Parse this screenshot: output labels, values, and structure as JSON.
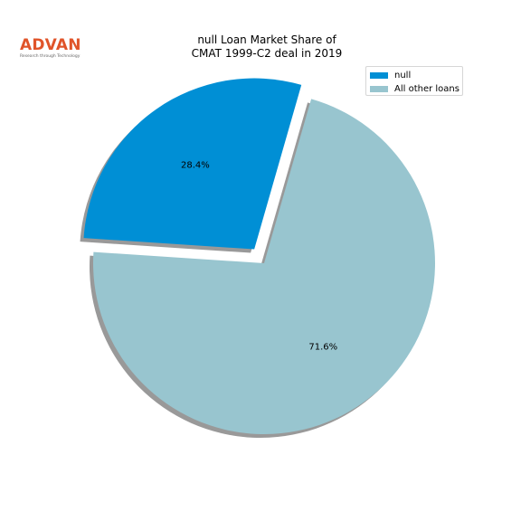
{
  "logo": {
    "text": "ADVAN",
    "tagline": "Research through Technology"
  },
  "chart_data": {
    "type": "pie",
    "title": [
      "null Loan Market Share of",
      "CMAT 1999-C2 deal in 2019"
    ],
    "slices": [
      {
        "label": "null",
        "value": 28.4,
        "pct_label": "28.4%",
        "color": "#008fd5",
        "exploded": true
      },
      {
        "label": "All other loans",
        "value": 71.6,
        "pct_label": "71.6%",
        "color": "#98c5cf",
        "exploded": false
      }
    ],
    "start_angle_deg": 74,
    "direction": "counterclockwise",
    "shadow": true,
    "legend": {
      "position": "top-right"
    }
  }
}
